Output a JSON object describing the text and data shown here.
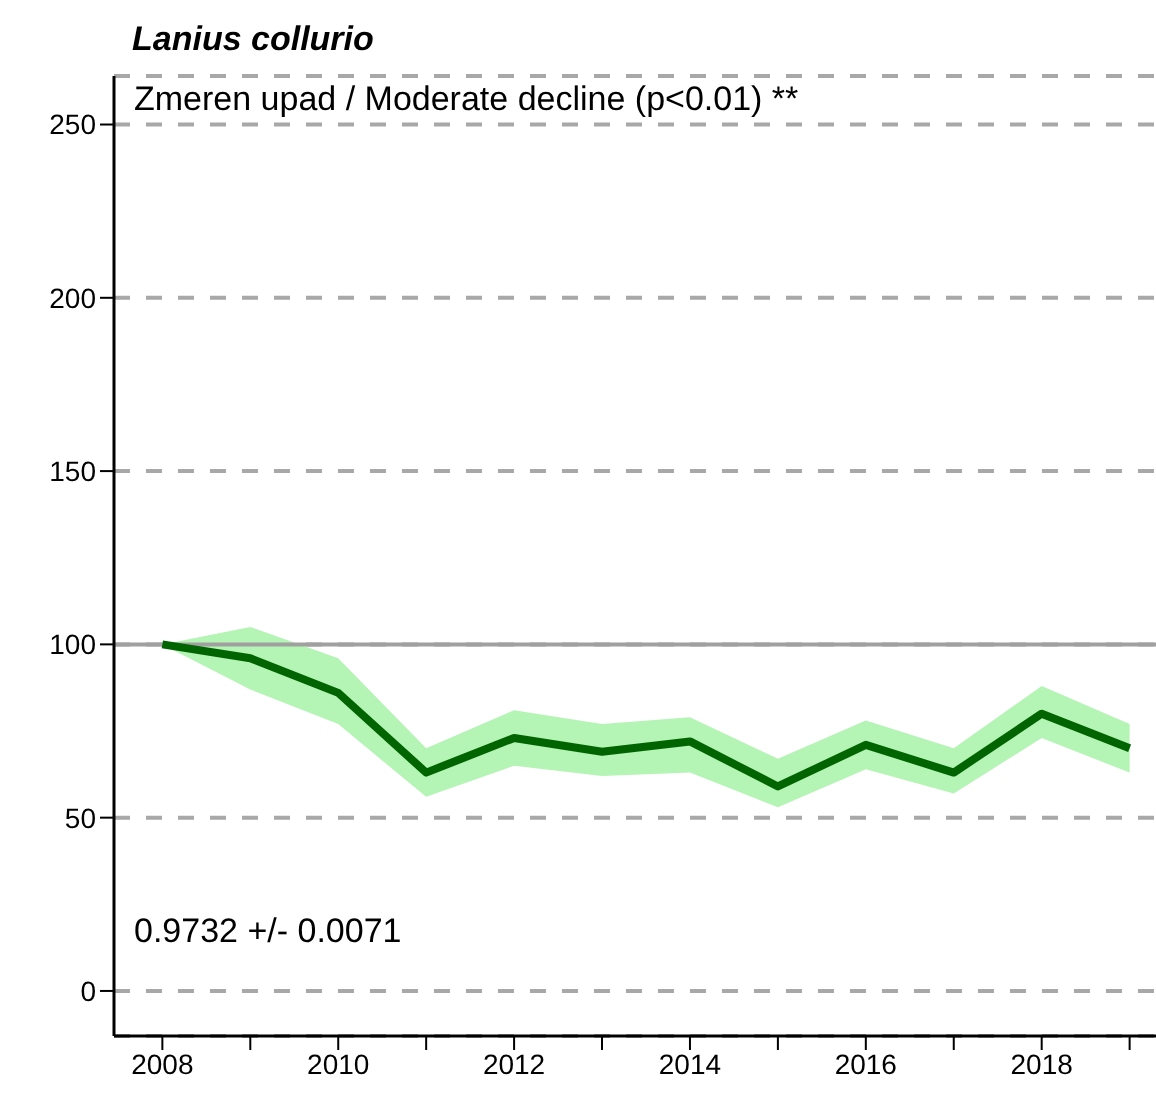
{
  "chart_data": {
    "type": "line",
    "title": "Lanius collurio",
    "x": [
      2008,
      2009,
      2010,
      2011,
      2012,
      2013,
      2014,
      2015,
      2016,
      2017,
      2018,
      2019
    ],
    "series": [
      {
        "color": "#006400",
        "values": [
          100,
          96,
          86,
          63,
          73,
          69,
          72,
          59,
          71,
          63,
          80,
          70
        ],
        "lower": [
          100,
          87,
          77,
          56,
          65,
          62,
          63,
          53,
          64,
          57,
          73,
          63
        ],
        "upper": [
          100,
          105,
          96,
          70,
          81,
          77,
          79,
          67,
          78,
          70,
          88,
          77
        ]
      }
    ],
    "xlim": [
      2007.45,
      2019.3
    ],
    "xticks": [
      2008,
      {
        "value": 2009,
        "label": null
      },
      2010,
      {
        "value": 2011,
        "label": null
      },
      2012,
      {
        "value": 2013,
        "label": null
      },
      2014,
      {
        "value": 2015,
        "label": null
      },
      2016,
      {
        "value": 2017,
        "label": null
      },
      2018,
      {
        "value": 2019,
        "label": null
      }
    ],
    "ylim": [
      -13,
      264
    ],
    "yticks": [
      0,
      50,
      100,
      150,
      200,
      250
    ],
    "grid": "y",
    "legend": false,
    "ref_lines": [
      {
        "axis": "y",
        "value": 100,
        "color": "#a0a0a0",
        "line_style": "solid"
      }
    ],
    "annotations": [
      "Zmeren upad / Moderate decline (p<0.01) **",
      "0.9732 +/- 0.0071"
    ]
  }
}
